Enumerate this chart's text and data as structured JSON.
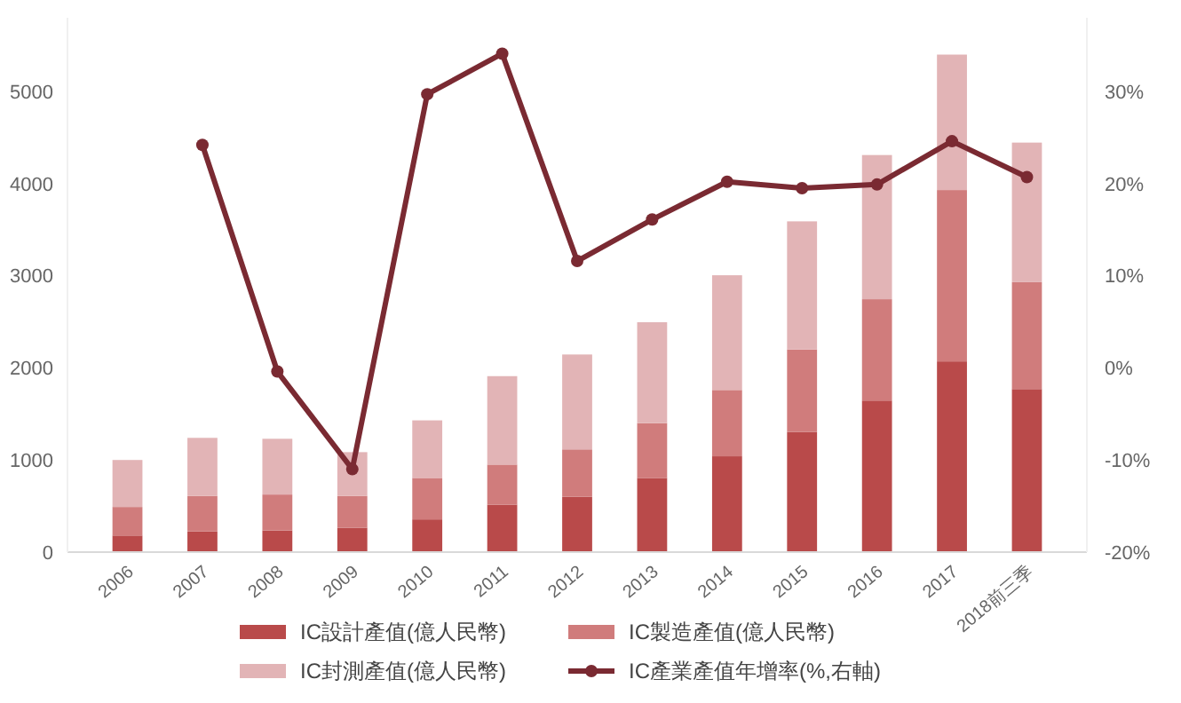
{
  "chart_data": {
    "type": "bar",
    "stacked": true,
    "categories": [
      "2006",
      "2007",
      "2008",
      "2009",
      "2010",
      "2011",
      "2012",
      "2013",
      "2014",
      "2015",
      "2016",
      "2017",
      "2018前三季"
    ],
    "series": [
      {
        "name": "IC設計產值(億人民幣)",
        "color": "#b94a4a",
        "values": [
          180,
          225,
          235,
          265,
          355,
          515,
          600,
          805,
          1040,
          1305,
          1645,
          2070,
          1770
        ]
      },
      {
        "name": "IC製造產值(億人民幣)",
        "color": "#d07c7c",
        "values": [
          310,
          385,
          390,
          345,
          450,
          435,
          515,
          595,
          720,
          895,
          1100,
          1860,
          1160
        ]
      },
      {
        "name": "IC封測產值(億人民幣)",
        "color": "#e2b4b6",
        "values": [
          510,
          630,
          605,
          475,
          625,
          960,
          1030,
          1095,
          1245,
          1390,
          1565,
          1470,
          1515
        ]
      },
      {
        "name": "IC產業產值年增率(%,右軸)",
        "type": "line",
        "axis": "y2",
        "color": "#7a2a32",
        "marker": "circle",
        "values": [
          null,
          24.2,
          -0.4,
          -11,
          29.7,
          34.1,
          11.6,
          16.1,
          20.2,
          19.5,
          19.9,
          24.6,
          20.7
        ]
      }
    ],
    "ylim": [
      0,
      5800
    ],
    "yticks": [
      0,
      1000,
      2000,
      3000,
      4000,
      5000
    ],
    "y2lim": [
      -20,
      38
    ],
    "y2ticks": [
      {
        "value": -20,
        "label": "-20%"
      },
      {
        "value": -10,
        "label": "-10%"
      },
      {
        "value": 0,
        "label": "0%"
      },
      {
        "value": 10,
        "label": "10%"
      },
      {
        "value": 20,
        "label": "20%"
      },
      {
        "value": 30,
        "label": "30%"
      }
    ],
    "grid": false,
    "legend": "bottom"
  }
}
